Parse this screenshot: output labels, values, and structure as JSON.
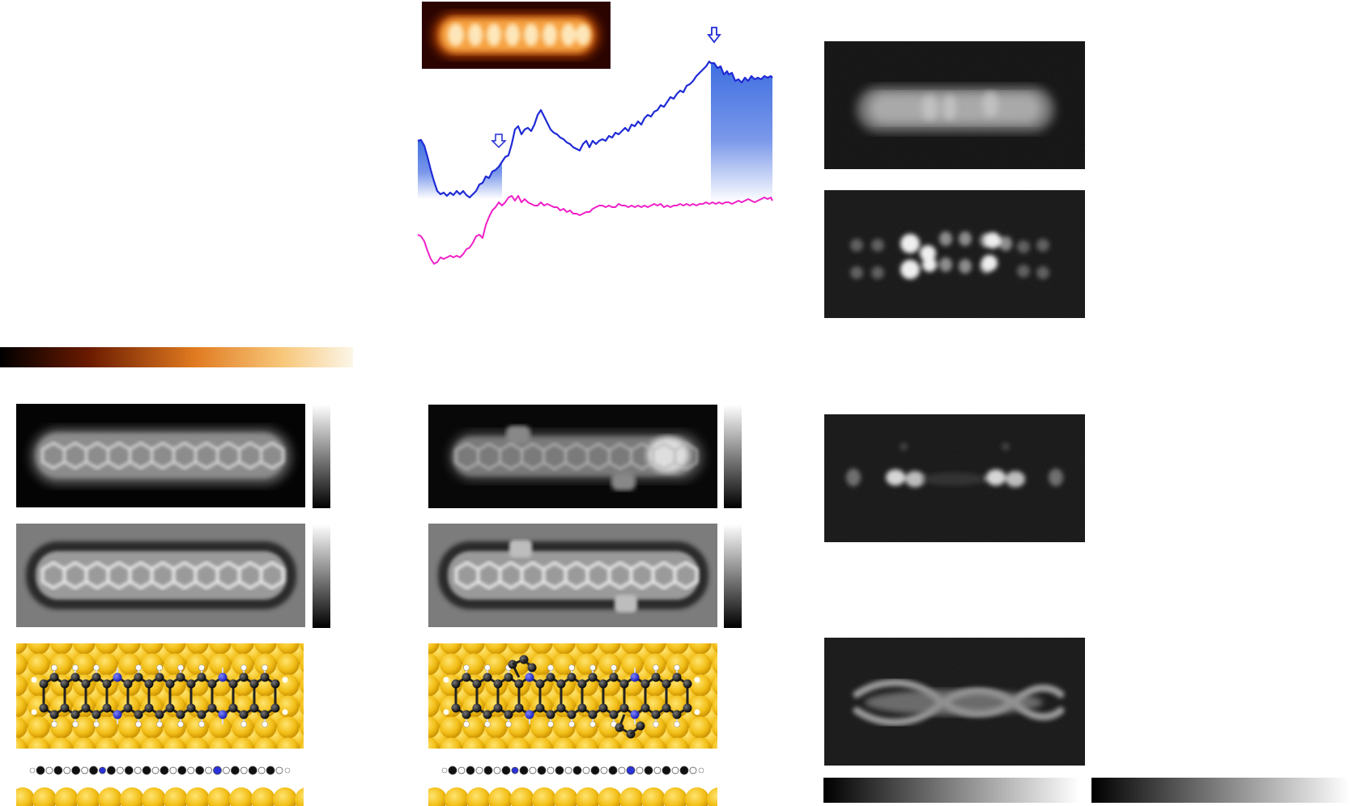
{
  "figure": {
    "colors": {
      "stm_orange": "#f6a140",
      "stm_dark": "#2b0400",
      "trace_blue": "#1f2bd6",
      "fill_blue": "#3f6fe0",
      "trace_magenta": "#f020c8",
      "afm_gray": "#7a7a7a",
      "gold": "#f2be16",
      "carbon": "#111111",
      "nitrogen": "#2a33d8",
      "hydrogen": "#ffffff"
    },
    "icons": [
      "arrow-down-marker-icon"
    ],
    "colorbars": [
      "afmhot-colorbar",
      "grayscale-colorbar",
      "grayscale-colorbar"
    ]
  }
}
